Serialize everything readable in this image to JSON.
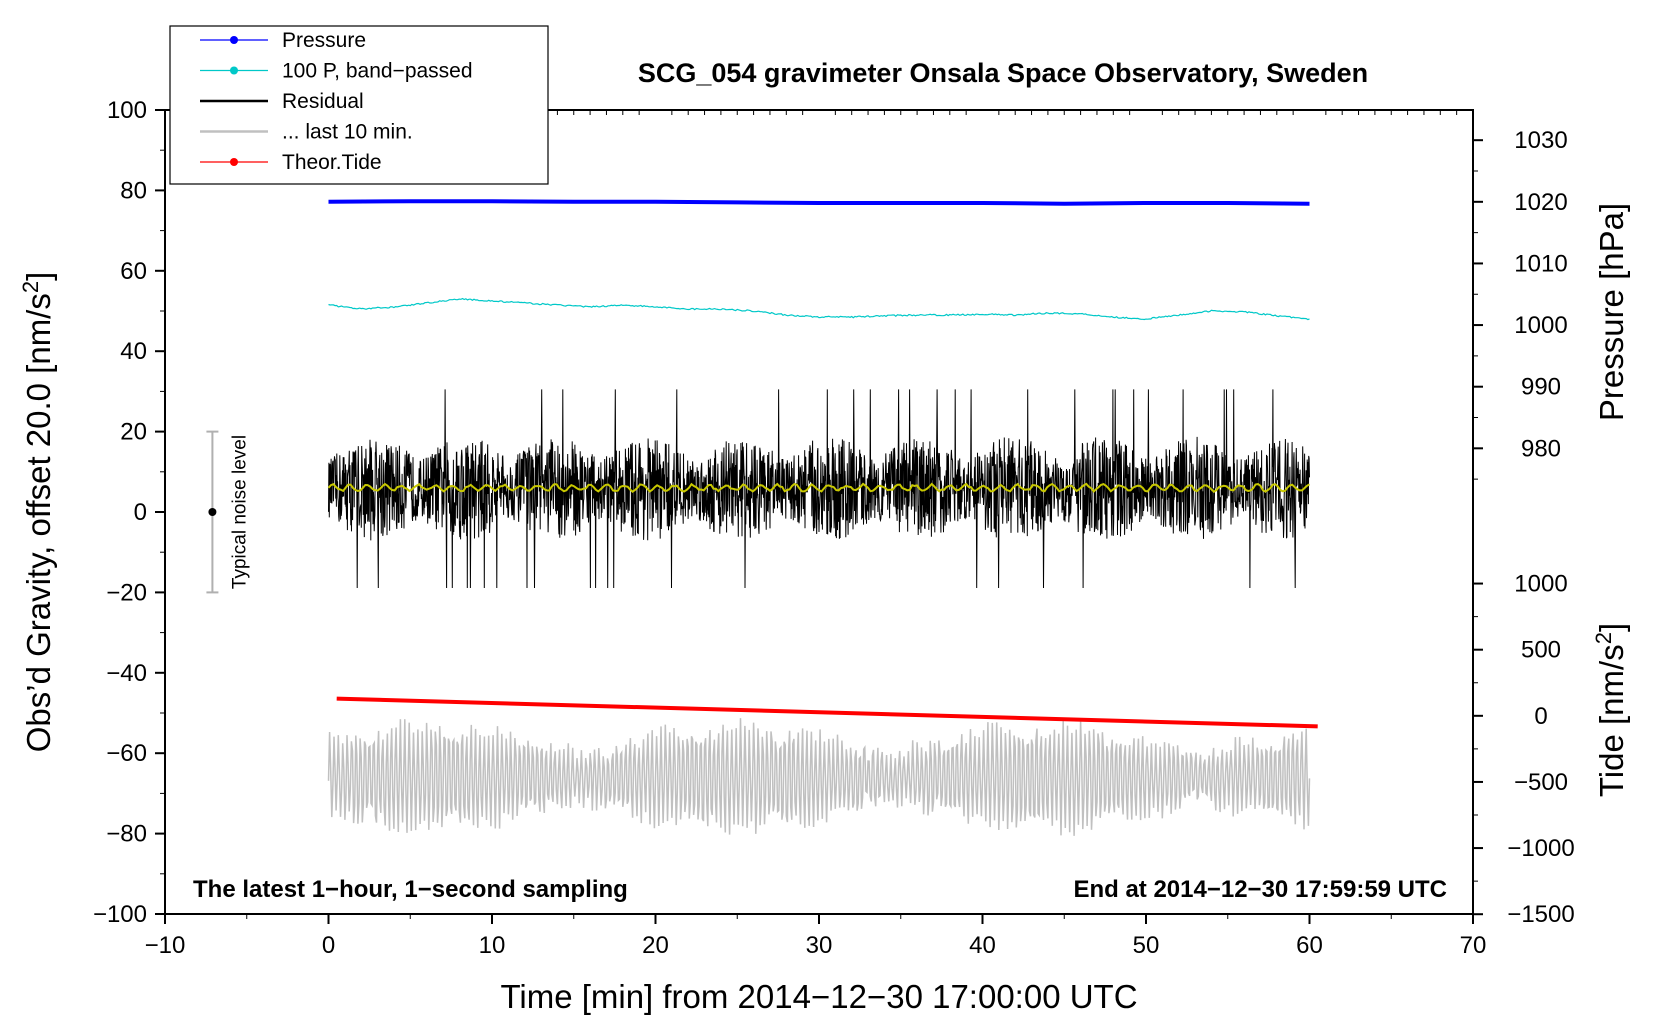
{
  "chart_data": {
    "type": "line",
    "title": "SCG_054 gravimeter Onsala Space Observatory, Sweden",
    "xlabel": "Time [min] from 2014−12−30 17:00:00 UTC",
    "ylabel_main": "Obs’d Gravity, offset 20.0 [nm/s",
    "ylabel_main_sup": "2",
    "ylabel_main_end": "]",
    "ylabel_pressure": "Pressure [hPa]",
    "ylabel_tide": "Tide [nm/s",
    "ylabel_tide_sup": "2",
    "ylabel_tide_end": "]",
    "xlim": [
      -10,
      70
    ],
    "ylim": [
      -100,
      100
    ],
    "x_ticks": [
      -10,
      0,
      10,
      20,
      30,
      40,
      50,
      60,
      70
    ],
    "x_tick_labels": [
      "−10",
      "0",
      "10",
      "20",
      "30",
      "40",
      "50",
      "60",
      "70"
    ],
    "y_ticks": [
      -100,
      -80,
      -60,
      -40,
      -20,
      0,
      20,
      40,
      60,
      80,
      100
    ],
    "y_tick_labels": [
      "−100",
      "−80",
      "−60",
      "−40",
      "−20",
      "0",
      "20",
      "40",
      "60",
      "80",
      "100"
    ],
    "pressure_axis": {
      "ticks": [
        980,
        990,
        1000,
        1010,
        1020,
        1030
      ],
      "tick_labels": [
        "980",
        "990",
        "1000",
        "1010",
        "1020",
        "1030"
      ],
      "map_y_at_1000": 46.5,
      "map_y_per_hpa": 1.533
    },
    "tide_axis": {
      "ticks": [
        -1500,
        -1000,
        -500,
        0,
        500,
        1000
      ],
      "tick_labels": [
        "−1500",
        "−1000",
        "−500",
        "0",
        "500",
        "1000"
      ],
      "map_y_at_0": -50.7,
      "map_y_per_unit": 0.0329
    },
    "legend_position": "top-left",
    "footer_left": "The latest 1−hour, 1−second sampling",
    "footer_right": "End at 2014−12−30 17:59:59 UTC",
    "noise_label": "Typical noise level",
    "noise_bar": {
      "x": -7.1,
      "center": 0,
      "low": -20,
      "high": 20
    },
    "legend": [
      {
        "label": "Pressure",
        "color": "#0000ff",
        "marker": true
      },
      {
        "label": "100 P, band−passed",
        "color": "#00c8c8",
        "marker": true
      },
      {
        "label": "Residual",
        "color": "#000000",
        "marker": false
      },
      {
        "label": "... last 10 min.",
        "color": "#c0c0c0",
        "marker": false
      },
      {
        "label": "Theor.Tide",
        "color": "#ff0000",
        "marker": true
      }
    ],
    "series": [
      {
        "name": "Pressure",
        "color": "#0000ff",
        "unit": "hPa",
        "x": [
          0,
          5,
          10,
          15,
          20,
          25,
          30,
          35,
          40,
          45,
          50,
          55,
          60
        ],
        "values": [
          1020.0,
          1020.1,
          1020.1,
          1020.0,
          1020.0,
          1019.9,
          1019.8,
          1019.8,
          1019.8,
          1019.7,
          1019.8,
          1019.8,
          1019.7
        ]
      },
      {
        "name": "100 P, band−passed",
        "color": "#00c8c8",
        "unit": "nm/s2",
        "x": [
          0,
          2,
          4,
          6,
          8,
          10,
          12,
          14,
          16,
          18,
          20,
          22,
          24,
          26,
          28,
          30,
          32,
          34,
          36,
          38,
          40,
          42,
          44,
          46,
          48,
          50,
          52,
          54,
          56,
          58,
          60
        ],
        "values": [
          51.5,
          50.5,
          51.0,
          52.0,
          53.0,
          52.5,
          52.0,
          51.5,
          51.0,
          51.5,
          51.0,
          50.5,
          50.5,
          50.0,
          49.0,
          48.5,
          48.5,
          48.8,
          49.0,
          49.0,
          49.2,
          49.0,
          49.5,
          49.3,
          48.5,
          48.0,
          49.0,
          50.0,
          49.8,
          48.8,
          48.0
        ]
      },
      {
        "name": "Residual",
        "color": "#000000",
        "unit": "nm/s2",
        "x_range": [
          0,
          60
        ],
        "mean": 5.8,
        "envelope": 13,
        "min": -20,
        "max": 33
      },
      {
        "name": "Residual mean",
        "color": "#c8c800",
        "unit": "nm/s2",
        "x_range": [
          0,
          60
        ],
        "mean": 6
      },
      {
        "name": "... last 10 min.",
        "color": "#c0c0c0",
        "unit": "nm/s2",
        "x_range": [
          0,
          60
        ],
        "mean": -66,
        "envelope": 13,
        "min": -88,
        "max": -41
      },
      {
        "name": "Theor.Tide",
        "color": "#ff0000",
        "unit": "nm/s2",
        "x": [
          0.5,
          60.5
        ],
        "values": [
          130,
          -80
        ]
      }
    ]
  }
}
